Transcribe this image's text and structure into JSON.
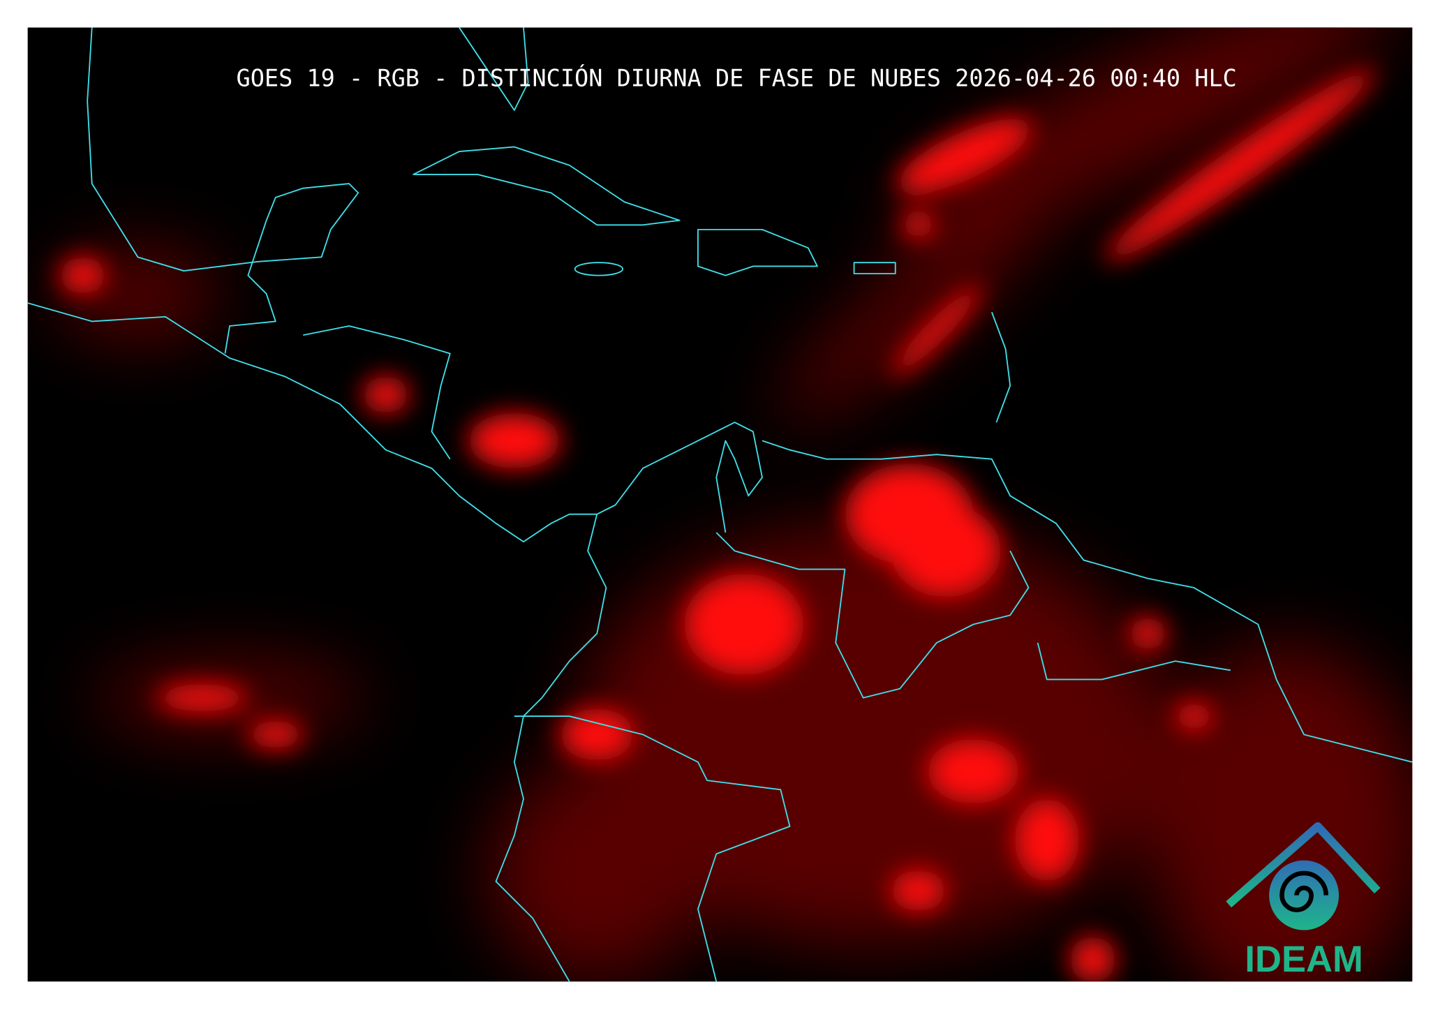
{
  "header": {
    "title": "GOES 19 - RGB - DISTINCIÓN DIURNA DE FASE DE NUBES 2026-04-26 00:40 HLC"
  },
  "logo": {
    "text": "IDEAM"
  }
}
